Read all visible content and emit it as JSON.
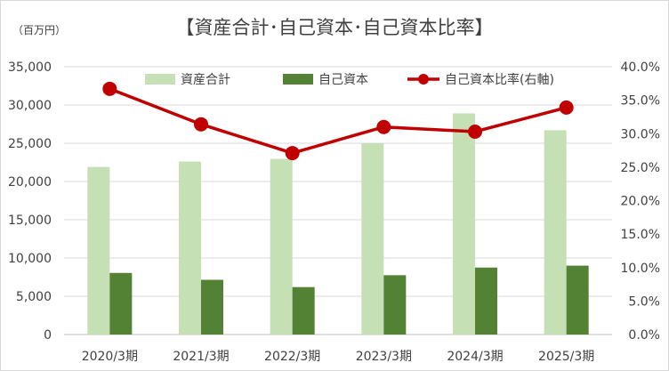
{
  "chart_data": {
    "type": "bar",
    "title": "【資産合計･自己資本･自己資本比率】",
    "unit_label": "（百万円）",
    "categories": [
      "2020/3期",
      "2021/3期",
      "2022/3期",
      "2023/3期",
      "2024/3期",
      "2025/3期"
    ],
    "series": [
      {
        "name": "資産合計",
        "type": "bar",
        "axis": "left",
        "color": "#c5e0b4",
        "values": [
          21900,
          22600,
          22950,
          25000,
          28900,
          26700
        ]
      },
      {
        "name": "自己資本",
        "type": "bar",
        "axis": "left",
        "color": "#548235",
        "values": [
          8050,
          7150,
          6200,
          7750,
          8750,
          9000
        ]
      },
      {
        "name": "自己資本比率(右軸)",
        "type": "line",
        "axis": "right",
        "color": "#c00000",
        "values": [
          36.7,
          31.4,
          27.1,
          31.0,
          30.3,
          33.9
        ]
      }
    ],
    "ylim": [
      0,
      35000
    ],
    "yticks": [
      "0",
      "5,000",
      "10,000",
      "15,000",
      "20,000",
      "25,000",
      "30,000",
      "35,000"
    ],
    "y2lim": [
      0,
      40
    ],
    "y2ticks": [
      "0.0%",
      "5.0%",
      "10.0%",
      "15.0%",
      "20.0%",
      "25.0%",
      "30.0%",
      "35.0%",
      "40.0%"
    ],
    "grid": true,
    "legend_position": "top"
  }
}
